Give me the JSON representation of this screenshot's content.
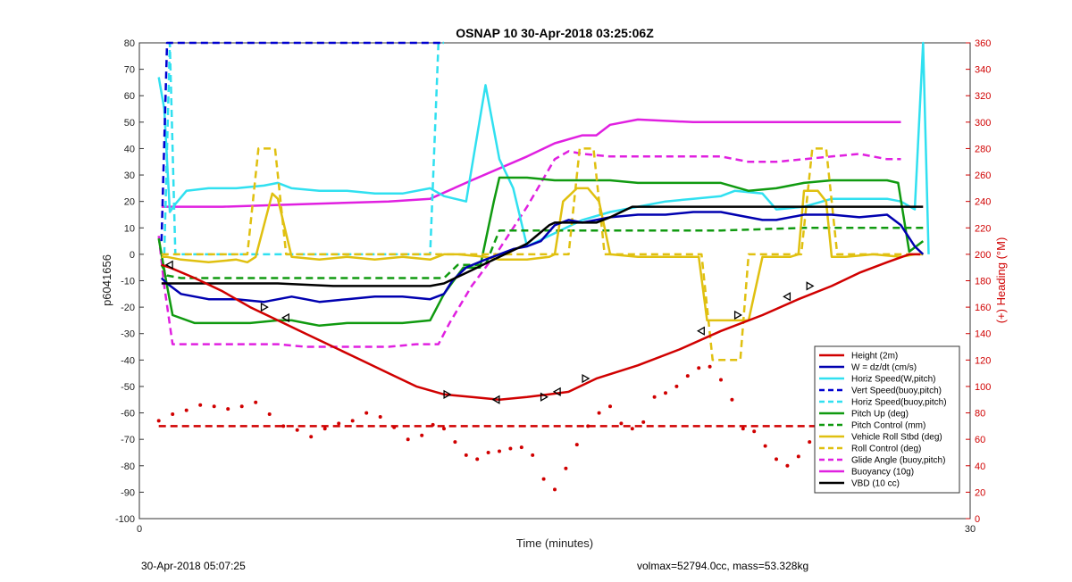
{
  "chart_data": {
    "type": "line",
    "title": "OSNAP 10 30-Apr-2018 03:25:06Z",
    "xlabel": "Time (minutes)",
    "ylabel": "p6041656",
    "y2label": "(+) Heading (°M)",
    "xlim": [
      0,
      30
    ],
    "ylim": [
      -100,
      80
    ],
    "y2lim": [
      0,
      360
    ],
    "xticks": [
      "0",
      "30"
    ],
    "yticks": [
      "80",
      "70",
      "60",
      "50",
      "40",
      "30",
      "20",
      "10",
      "0",
      "-10",
      "-20",
      "-30",
      "-40",
      "-50",
      "-60",
      "-70",
      "-80",
      "-90",
      "-100"
    ],
    "y2ticks": [
      "360",
      "340",
      "320",
      "300",
      "280",
      "260",
      "240",
      "220",
      "200",
      "180",
      "160",
      "140",
      "120",
      "100",
      "80",
      "60",
      "40",
      "20",
      "0"
    ],
    "legend_position": "bottom-right",
    "footer_left": "30-Apr-2018 05:07:25",
    "footer_right": "volmax=52794.0cc, mass=53.328kg",
    "series": [
      {
        "name": "Height (2m)",
        "color": "#d00000",
        "style": "solid",
        "axis": "left",
        "x": [
          0.8,
          1.1,
          2.0,
          3.0,
          4.0,
          5.0,
          6.0,
          7.0,
          8.0,
          9.0,
          10.0,
          11.0,
          12.0,
          13.0,
          14.0,
          14.8,
          15.5,
          16.5,
          18.0,
          19.5,
          21.0,
          22.5,
          23.8,
          25.0,
          26.0,
          27.0,
          27.8,
          28.2
        ],
        "y": [
          -4,
          -5,
          -9,
          -14,
          -20,
          -25,
          -30,
          -35,
          -40,
          -45,
          -50,
          -53,
          -54,
          -55,
          -54,
          -53,
          -52,
          -47,
          -42,
          -36,
          -29,
          -23,
          -17,
          -12,
          -7,
          -3,
          0,
          0
        ]
      },
      {
        "name": "W = dz/dt (cm/s)",
        "color": "#0000b0",
        "style": "solid",
        "axis": "left",
        "x": [
          0.8,
          1.0,
          1.5,
          2.5,
          3.5,
          4.5,
          5.5,
          6.0,
          6.5,
          7.5,
          8.5,
          9.5,
          10.5,
          11.0,
          11.3,
          11.8,
          12.5,
          13.0,
          13.5,
          14.0,
          14.5,
          15.0,
          15.5,
          16.0,
          17.0,
          18.0,
          19.0,
          20.0,
          21.0,
          21.5,
          22.5,
          23.0,
          24.0,
          25.0,
          26.0,
          27.0,
          27.5,
          28.0,
          28.3
        ],
        "y": [
          -9,
          -11,
          -15,
          -17,
          -17,
          -18,
          -16,
          -17,
          -18,
          -17,
          -16,
          -16,
          -17,
          -15,
          -10,
          -5,
          -2,
          0,
          2,
          3,
          5,
          11,
          13,
          12,
          14,
          15,
          15,
          16,
          16,
          15,
          13,
          13,
          15,
          15,
          14,
          15,
          11,
          3,
          0
        ]
      },
      {
        "name": "Horiz Speed(W,pitch)",
        "color": "#30e0f0",
        "style": "solid",
        "axis": "left",
        "x": [
          0.7,
          0.9,
          1.1,
          1.3,
          1.7,
          2.5,
          3.5,
          4.5,
          5.0,
          5.5,
          6.5,
          7.5,
          8.5,
          9.5,
          10.5,
          11.0,
          11.4,
          11.8,
          12.5,
          13.0,
          13.5,
          14.0,
          15.0,
          16.0,
          17.0,
          18.0,
          19.0,
          20.0,
          21.0,
          21.5,
          22.5,
          23.0,
          24.0,
          25.0,
          26.0,
          27.0,
          27.5,
          28.0,
          28.3,
          28.5
        ],
        "y": [
          67,
          55,
          16,
          19,
          24,
          25,
          25,
          26,
          27,
          25,
          24,
          24,
          23,
          23,
          25,
          22,
          21,
          20,
          64,
          36,
          25,
          3,
          8,
          13,
          16,
          18,
          20,
          21,
          22,
          24,
          23,
          17,
          18,
          21,
          21,
          21,
          20,
          17,
          85,
          0
        ]
      },
      {
        "name": "Vert Speed(buoy,pitch)",
        "color": "#0000d0",
        "style": "dashed",
        "axis": "left",
        "x": [
          0.8,
          1.0,
          1.1,
          10.6,
          10.8,
          11.0
        ],
        "y": [
          5,
          80,
          80,
          80,
          80,
          80
        ]
      },
      {
        "name": "Horiz Speed(buoy,pitch)",
        "color": "#30e0f0",
        "style": "dashed",
        "axis": "left",
        "x": [
          0.9,
          1.1,
          1.3,
          1.8,
          3.0,
          5.0,
          7.0,
          9.0,
          10.5,
          10.8,
          11.0
        ],
        "y": [
          0,
          80,
          0,
          0,
          0,
          0,
          0,
          0,
          0,
          80,
          80
        ]
      },
      {
        "name": "Pitch Up (deg)",
        "color": "#109a10",
        "style": "solid",
        "axis": "left",
        "x": [
          0.7,
          1.0,
          1.2,
          2.0,
          3.0,
          4.0,
          5.0,
          5.5,
          6.0,
          6.5,
          7.5,
          8.5,
          9.5,
          10.5,
          11.0,
          11.7,
          12.3,
          12.8,
          13.0,
          14.0,
          15.0,
          16.0,
          17.0,
          18.0,
          19.0,
          20.0,
          21.0,
          22.0,
          23.0,
          24.0,
          25.0,
          26.0,
          27.0,
          27.4,
          27.8,
          28.3
        ],
        "y": [
          6,
          -12,
          -23,
          -26,
          -26,
          -26,
          -25,
          -25,
          -26,
          -27,
          -26,
          -26,
          -26,
          -25,
          -15,
          -5,
          -5,
          20,
          29,
          29,
          28,
          28,
          28,
          27,
          27,
          27,
          27,
          24,
          25,
          27,
          28,
          28,
          28,
          27,
          1,
          5
        ]
      },
      {
        "name": "Pitch Control (mm)",
        "color": "#109a10",
        "style": "dashed",
        "axis": "left",
        "x": [
          0.8,
          1.0,
          1.5,
          3.0,
          5.0,
          7.0,
          9.0,
          10.5,
          11.0,
          11.5,
          12.5,
          13.0,
          15.0,
          18.0,
          21.0,
          24.0,
          27.0,
          28.3
        ],
        "y": [
          -4,
          -8,
          -9,
          -9,
          -9,
          -9,
          -9,
          -9,
          -9,
          -4,
          -4,
          9,
          9,
          9,
          9,
          10,
          10,
          10
        ]
      },
      {
        "name": "Vehicle Roll Stbd (deg)",
        "color": "#e0c010",
        "style": "solid",
        "axis": "left",
        "x": [
          0.8,
          1.0,
          1.5,
          2.5,
          3.5,
          3.9,
          4.2,
          4.8,
          5.0,
          5.5,
          6.5,
          7.5,
          8.5,
          9.5,
          10.5,
          11.0,
          11.5,
          12.5,
          13.0,
          14.0,
          14.8,
          15.0,
          15.3,
          15.8,
          16.2,
          16.6,
          17.0,
          18.0,
          19.0,
          19.8,
          20.2,
          20.5,
          21.0,
          21.5,
          22.0,
          22.5,
          23.5,
          23.8,
          24.0,
          24.5,
          24.8,
          25.0,
          25.5,
          26.5,
          27.5,
          28.0,
          28.3
        ],
        "y": [
          -1,
          -1,
          -2,
          -3,
          -2,
          -3,
          -1,
          23,
          21,
          -1,
          -2,
          -1,
          -2,
          -1,
          -2,
          0,
          0,
          -1,
          -2,
          -2,
          -1,
          0,
          20,
          25,
          25,
          20,
          0,
          -1,
          -1,
          -1,
          -1,
          -25,
          -25,
          -25,
          -25,
          -1,
          -1,
          0,
          24,
          24,
          20,
          -1,
          -1,
          0,
          -1,
          0,
          0
        ]
      },
      {
        "name": "Roll Control (deg)",
        "color": "#e0c010",
        "style": "dashed",
        "axis": "left",
        "x": [
          0.8,
          1.2,
          2.0,
          3.5,
          3.9,
          4.3,
          4.9,
          5.3,
          5.7,
          7.0,
          9.0,
          11.0,
          13.0,
          14.5,
          15.0,
          15.5,
          15.9,
          16.4,
          16.8,
          18.0,
          20.0,
          20.3,
          20.7,
          21.3,
          21.7,
          22.0,
          23.5,
          23.9,
          24.3,
          24.8,
          25.2,
          26.5,
          28.3
        ],
        "y": [
          0,
          0,
          0,
          0,
          0,
          40,
          40,
          0,
          0,
          0,
          0,
          0,
          0,
          0,
          0,
          0,
          40,
          40,
          0,
          0,
          0,
          0,
          -40,
          -40,
          -40,
          0,
          0,
          0,
          40,
          40,
          0,
          0,
          0
        ]
      },
      {
        "name": "Glide Angle (buoy,pitch)",
        "color": "#e020e0",
        "style": "dashed",
        "axis": "left",
        "x": [
          0.7,
          0.9,
          1.2,
          2.0,
          3.0,
          4.0,
          5.0,
          6.0,
          7.0,
          8.0,
          9.0,
          10.0,
          10.8,
          11.2,
          12.0,
          13.0,
          14.0,
          15.0,
          15.5,
          16.0,
          17.0,
          18.0,
          19.0,
          20.0,
          21.0,
          22.0,
          23.0,
          24.0,
          25.0,
          26.0,
          27.0,
          27.5
        ],
        "y": [
          7,
          -12,
          -34,
          -34,
          -34,
          -34,
          -34,
          -35,
          -35,
          -35,
          -35,
          -34,
          -34,
          -26,
          -12,
          2,
          18,
          36,
          39,
          38,
          37,
          37,
          37,
          37,
          37,
          35,
          35,
          36,
          37,
          38,
          36,
          36
        ]
      },
      {
        "name": "Buoyancy (10g)",
        "color": "#e020e0",
        "style": "solid",
        "axis": "left",
        "x": [
          0.8,
          3.0,
          6.0,
          9.0,
          10.5,
          12.0,
          14.0,
          15.0,
          16.0,
          16.5,
          17.0,
          18.0,
          20.0,
          22.0,
          24.0,
          26.0,
          27.5
        ],
        "y": [
          18,
          18,
          19,
          20,
          21,
          28,
          37,
          42,
          45,
          45,
          49,
          51,
          50,
          50,
          50,
          50,
          50
        ]
      },
      {
        "name": "VBD (10 cc)",
        "color": "#000000",
        "style": "solid",
        "axis": "left",
        "x": [
          0.8,
          1.5,
          3.0,
          5.0,
          7.0,
          9.0,
          10.5,
          11.0,
          12.0,
          13.0,
          14.0,
          14.8,
          15.0,
          16.0,
          16.5,
          17.0,
          17.8,
          18.0,
          20.0,
          22.0,
          24.0,
          26.0,
          28.0,
          28.3
        ],
        "y": [
          -11,
          -11,
          -11,
          -11,
          -12,
          -12,
          -12,
          -11,
          -6,
          -1,
          4,
          11,
          12,
          12,
          12,
          14,
          18,
          18,
          18,
          18,
          18,
          18,
          18,
          18
        ]
      }
    ],
    "heading_points": {
      "name": "Heading (°M)",
      "color": "#d00000",
      "style": "dotted",
      "axis": "right",
      "x": [
        0.7,
        1.2,
        1.7,
        2.2,
        2.7,
        3.2,
        3.7,
        4.2,
        4.7,
        5.2,
        5.7,
        6.2,
        6.7,
        7.2,
        7.7,
        8.2,
        8.7,
        9.2,
        9.7,
        10.2,
        10.6,
        11.0,
        11.4,
        11.8,
        12.2,
        12.6,
        13.0,
        13.4,
        13.8,
        14.2,
        14.6,
        15.0,
        15.4,
        15.8,
        16.2,
        16.6,
        17.0,
        17.4,
        17.8,
        18.2,
        18.6,
        19.0,
        19.4,
        19.8,
        20.2,
        20.6,
        21.0,
        21.4,
        21.8,
        22.2,
        22.6,
        23.0,
        23.4,
        23.8,
        24.2,
        24.6,
        25.0,
        25.4,
        25.8,
        26.2,
        26.6,
        27.0,
        27.4
      ],
      "y": [
        74,
        79,
        82,
        86,
        85,
        83,
        85,
        88,
        79,
        70,
        67,
        62,
        68,
        72,
        74,
        80,
        77,
        69,
        60,
        63,
        71,
        68,
        58,
        48,
        45,
        50,
        51,
        53,
        54,
        48,
        30,
        22,
        38,
        56,
        70,
        80,
        85,
        72,
        68,
        73,
        92,
        95,
        100,
        108,
        114,
        115,
        105,
        90,
        68,
        66,
        55,
        45,
        40,
        47,
        58,
        65,
        62,
        60,
        55,
        52,
        45,
        42,
        68
      ]
    },
    "heading_target": {
      "name": "Target Heading",
      "color": "#d00000",
      "style": "dashed",
      "axis": "right",
      "x": [
        0.7,
        28.3
      ],
      "y": [
        70,
        70
      ]
    },
    "markers": {
      "color": "#000000",
      "x": [
        1.1,
        4.5,
        5.3,
        11.1,
        12.9,
        14.6,
        15.1,
        16.1,
        20.3,
        21.6,
        23.4,
        24.2
      ],
      "y": [
        -4,
        -20,
        -24,
        -53,
        -55,
        -54,
        -52,
        -47,
        -29,
        -23,
        -16,
        -12
      ]
    }
  }
}
